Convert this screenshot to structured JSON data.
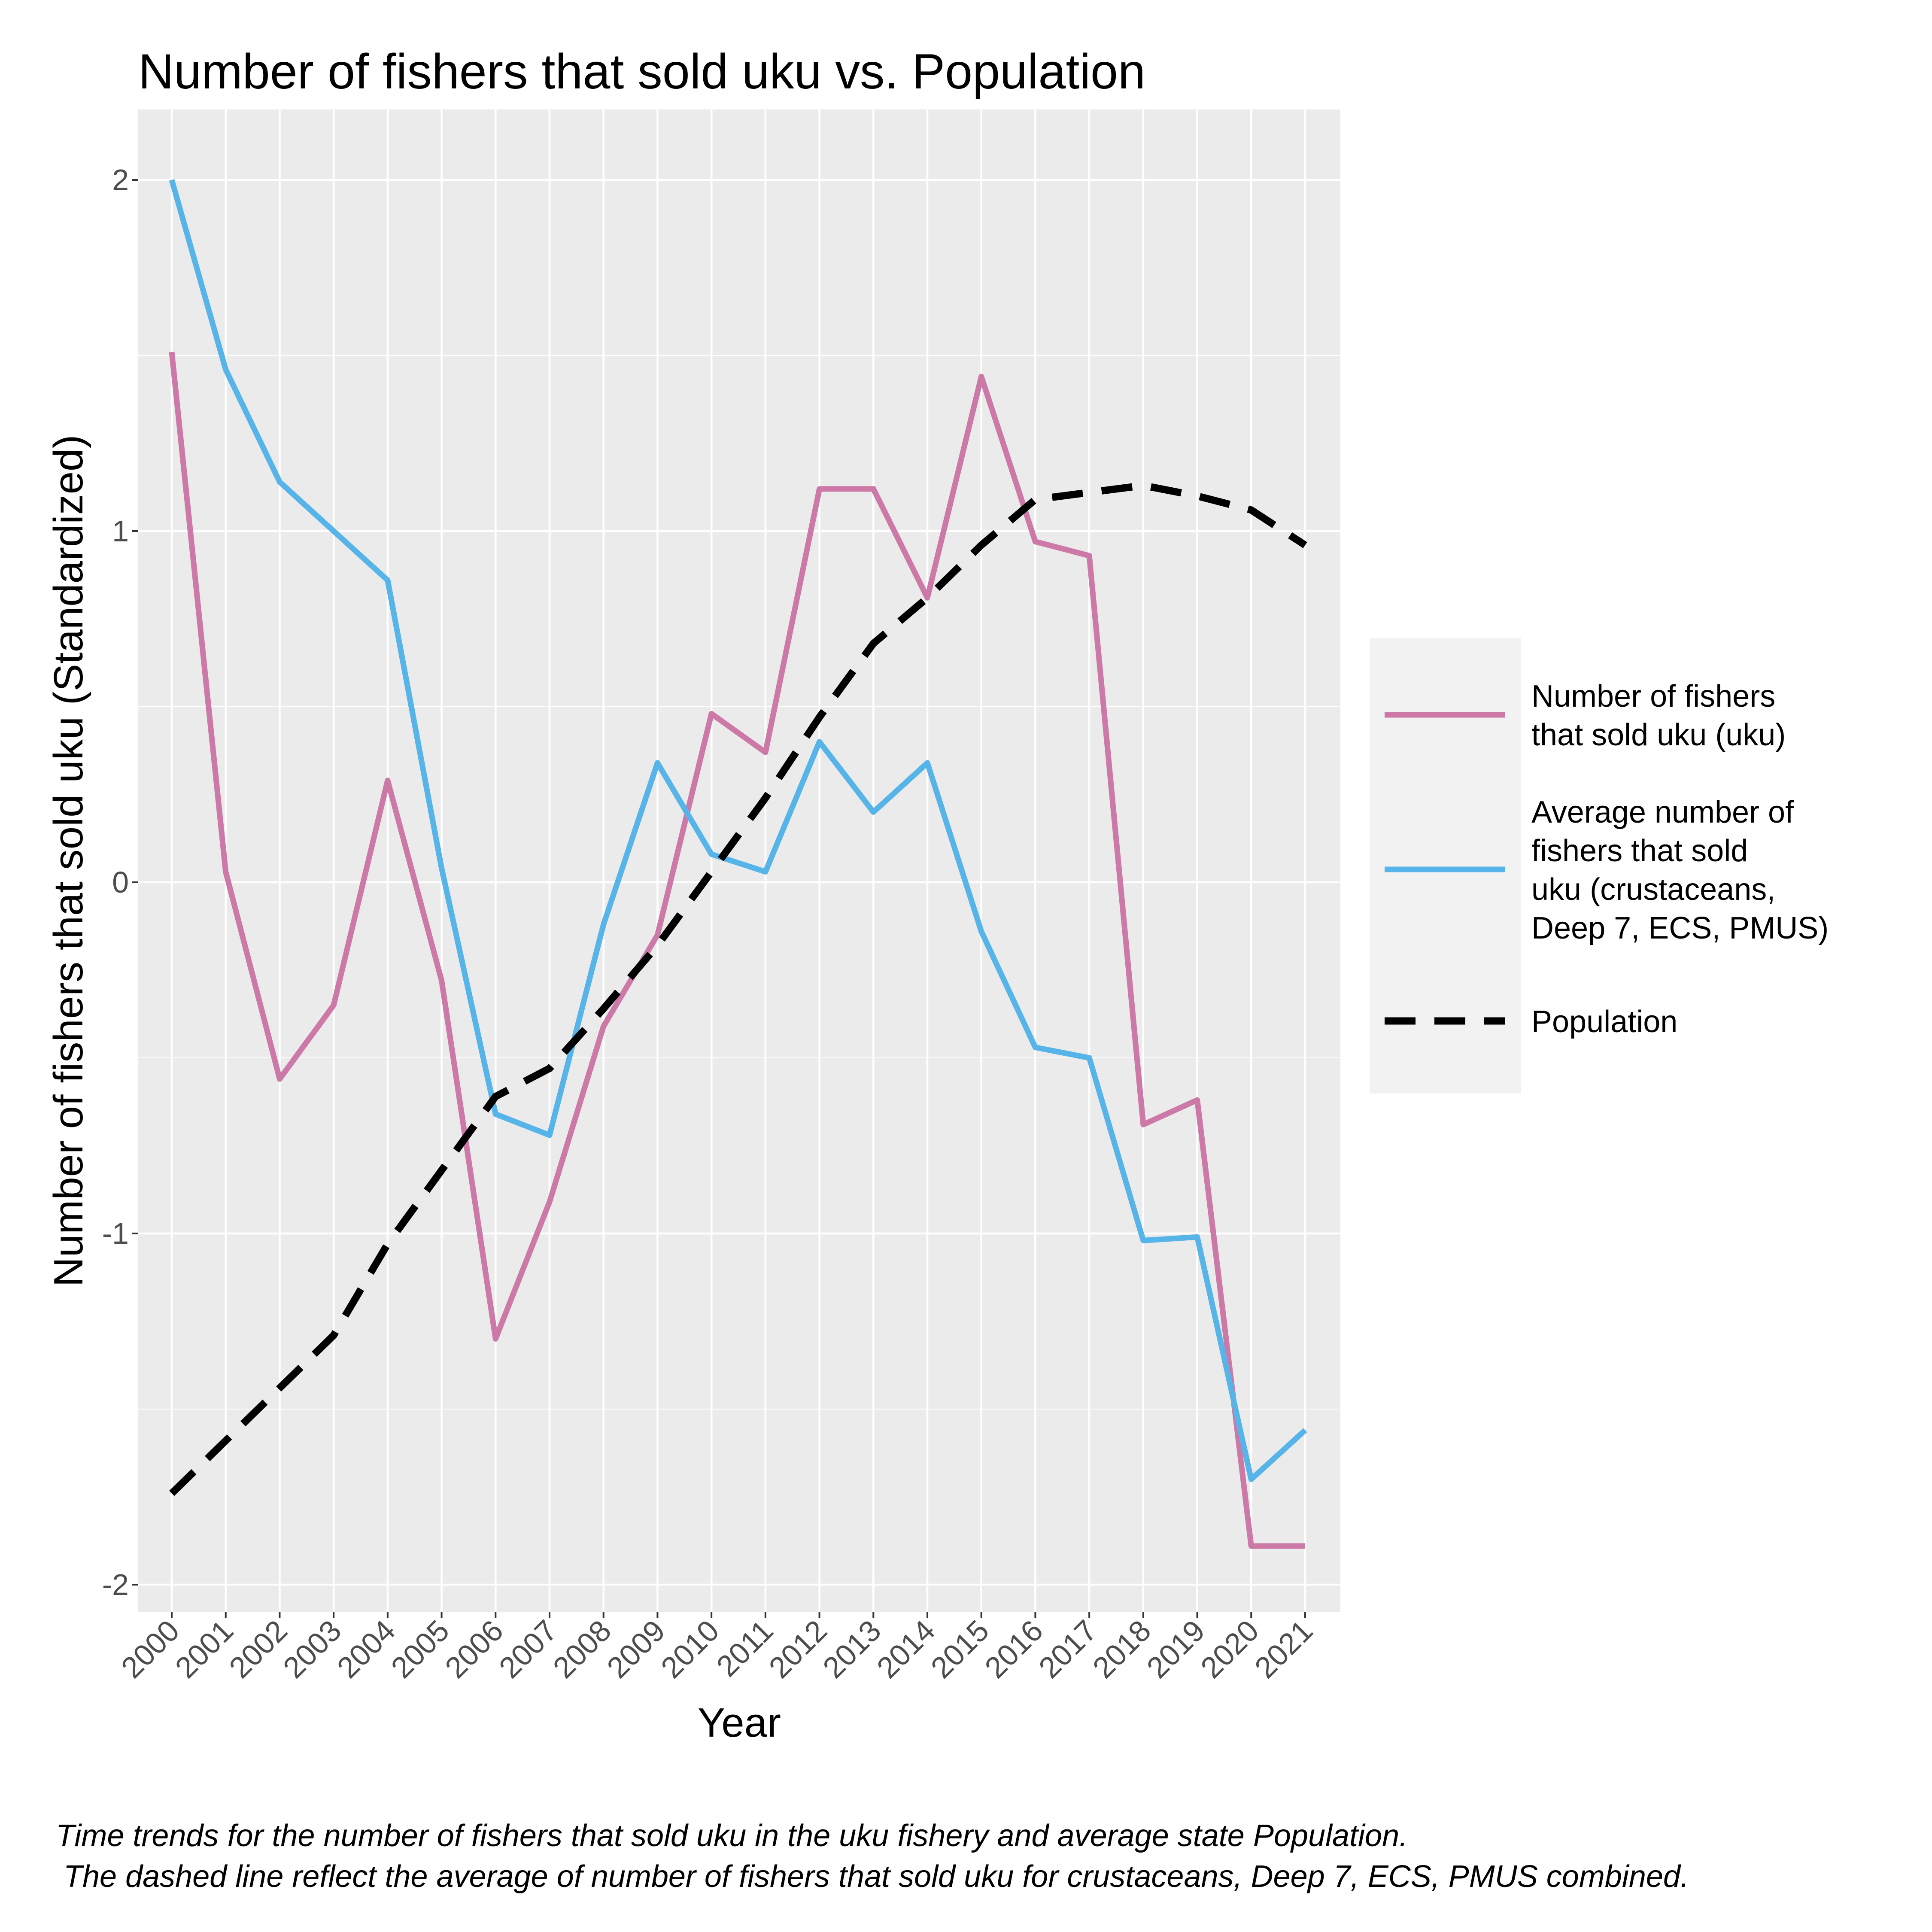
{
  "chart_data": {
    "type": "line",
    "title": "Number of fishers that sold uku vs. Population",
    "xlabel": "Year",
    "ylabel": "Number of fishers that sold uku (Standardized)",
    "x": [
      "2000",
      "2001",
      "2002",
      "2003",
      "2004",
      "2005",
      "2006",
      "2007",
      "2008",
      "2009",
      "2010",
      "2011",
      "2012",
      "2013",
      "2014",
      "2015",
      "2016",
      "2017",
      "2018",
      "2019",
      "2020",
      "2021"
    ],
    "yticks": [
      "-2",
      "-1",
      "0",
      "1",
      "2"
    ],
    "ytick_values": [
      -2,
      -1,
      0,
      1,
      2
    ],
    "ylim": [
      -2.08,
      2.2
    ],
    "grid": true,
    "legend_position": "right",
    "series": [
      {
        "name": "Number of fishers that sold uku (uku)",
        "legend_lines": [
          "Number of fishers",
          "that sold uku (uku)"
        ],
        "color": "#CC79A7",
        "dashed": false,
        "values": [
          1.51,
          0.03,
          -0.56,
          -0.35,
          0.29,
          -0.28,
          -1.3,
          -0.91,
          -0.41,
          -0.15,
          0.48,
          0.37,
          1.12,
          1.12,
          0.81,
          1.44,
          0.97,
          0.93,
          -0.69,
          -0.62,
          -1.89,
          -1.89
        ]
      },
      {
        "name": "Average number of fishers that sold uku (crustaceans, Deep 7, ECS, PMUS)",
        "legend_lines": [
          "Average number of",
          "fishers that sold",
          "uku (crustaceans,",
          "Deep 7, ECS, PMUS)"
        ],
        "color": "#56B4E9",
        "dashed": false,
        "values": [
          2.0,
          1.46,
          1.14,
          1.0,
          0.86,
          0.04,
          -0.66,
          -0.72,
          -0.12,
          0.34,
          0.08,
          0.03,
          0.4,
          0.2,
          0.34,
          -0.14,
          -0.47,
          -0.5,
          -1.02,
          -1.01,
          -1.7,
          -1.56
        ]
      },
      {
        "name": "Population",
        "legend_lines": [
          "Population"
        ],
        "color": "#000000",
        "dashed": true,
        "values": [
          -1.74,
          -1.59,
          -1.44,
          -1.29,
          -1.03,
          -0.82,
          -0.61,
          -0.53,
          -0.36,
          -0.18,
          0.03,
          0.24,
          0.47,
          0.68,
          0.81,
          0.96,
          1.09,
          1.11,
          1.13,
          1.1,
          1.06,
          0.96
        ]
      }
    ]
  },
  "caption": {
    "line1": "Time trends for the number of fishers that sold uku in the uku fishery and average state Population.",
    "line2": "The dashed line reflect the average of number of fishers that sold uku for crustaceans, Deep 7, ECS, PMUS combined."
  }
}
